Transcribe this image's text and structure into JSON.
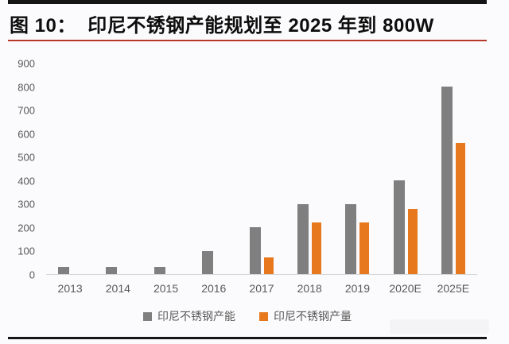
{
  "header": {
    "title": "图 10：  印尼不锈钢产能规划至 2025 年到 800W"
  },
  "colors": {
    "bar_gray": "#7f7f7f",
    "bar_orange": "#e8781d",
    "title_rule_red": "#b5372a",
    "page_rule_black": "#151515",
    "axis_line": "#d6d6d6",
    "axis_text": "#595959",
    "background": "#fbfbfd"
  },
  "chart_data": {
    "type": "bar",
    "title": "印尼不锈钢产能规划至 2025 年到 800W",
    "categories": [
      "2013",
      "2014",
      "2015",
      "2016",
      "2017",
      "2018",
      "2019",
      "2020E",
      "2025E"
    ],
    "series": [
      {
        "name": "印尼不锈钢产能",
        "color": "#7f7f7f",
        "values": [
          30,
          30,
          30,
          100,
          200,
          300,
          300,
          400,
          800
        ]
      },
      {
        "name": "印尼不锈钢产量",
        "color": "#e8781d",
        "values": [
          0,
          0,
          0,
          0,
          70,
          220,
          220,
          280,
          560
        ]
      }
    ],
    "xlabel": "",
    "ylabel": "",
    "ylim": [
      0,
      900
    ],
    "ytick_step": 100,
    "yticks": [
      0,
      100,
      200,
      300,
      400,
      500,
      600,
      700,
      800,
      900
    ],
    "grid": false,
    "legend_position": "bottom"
  }
}
